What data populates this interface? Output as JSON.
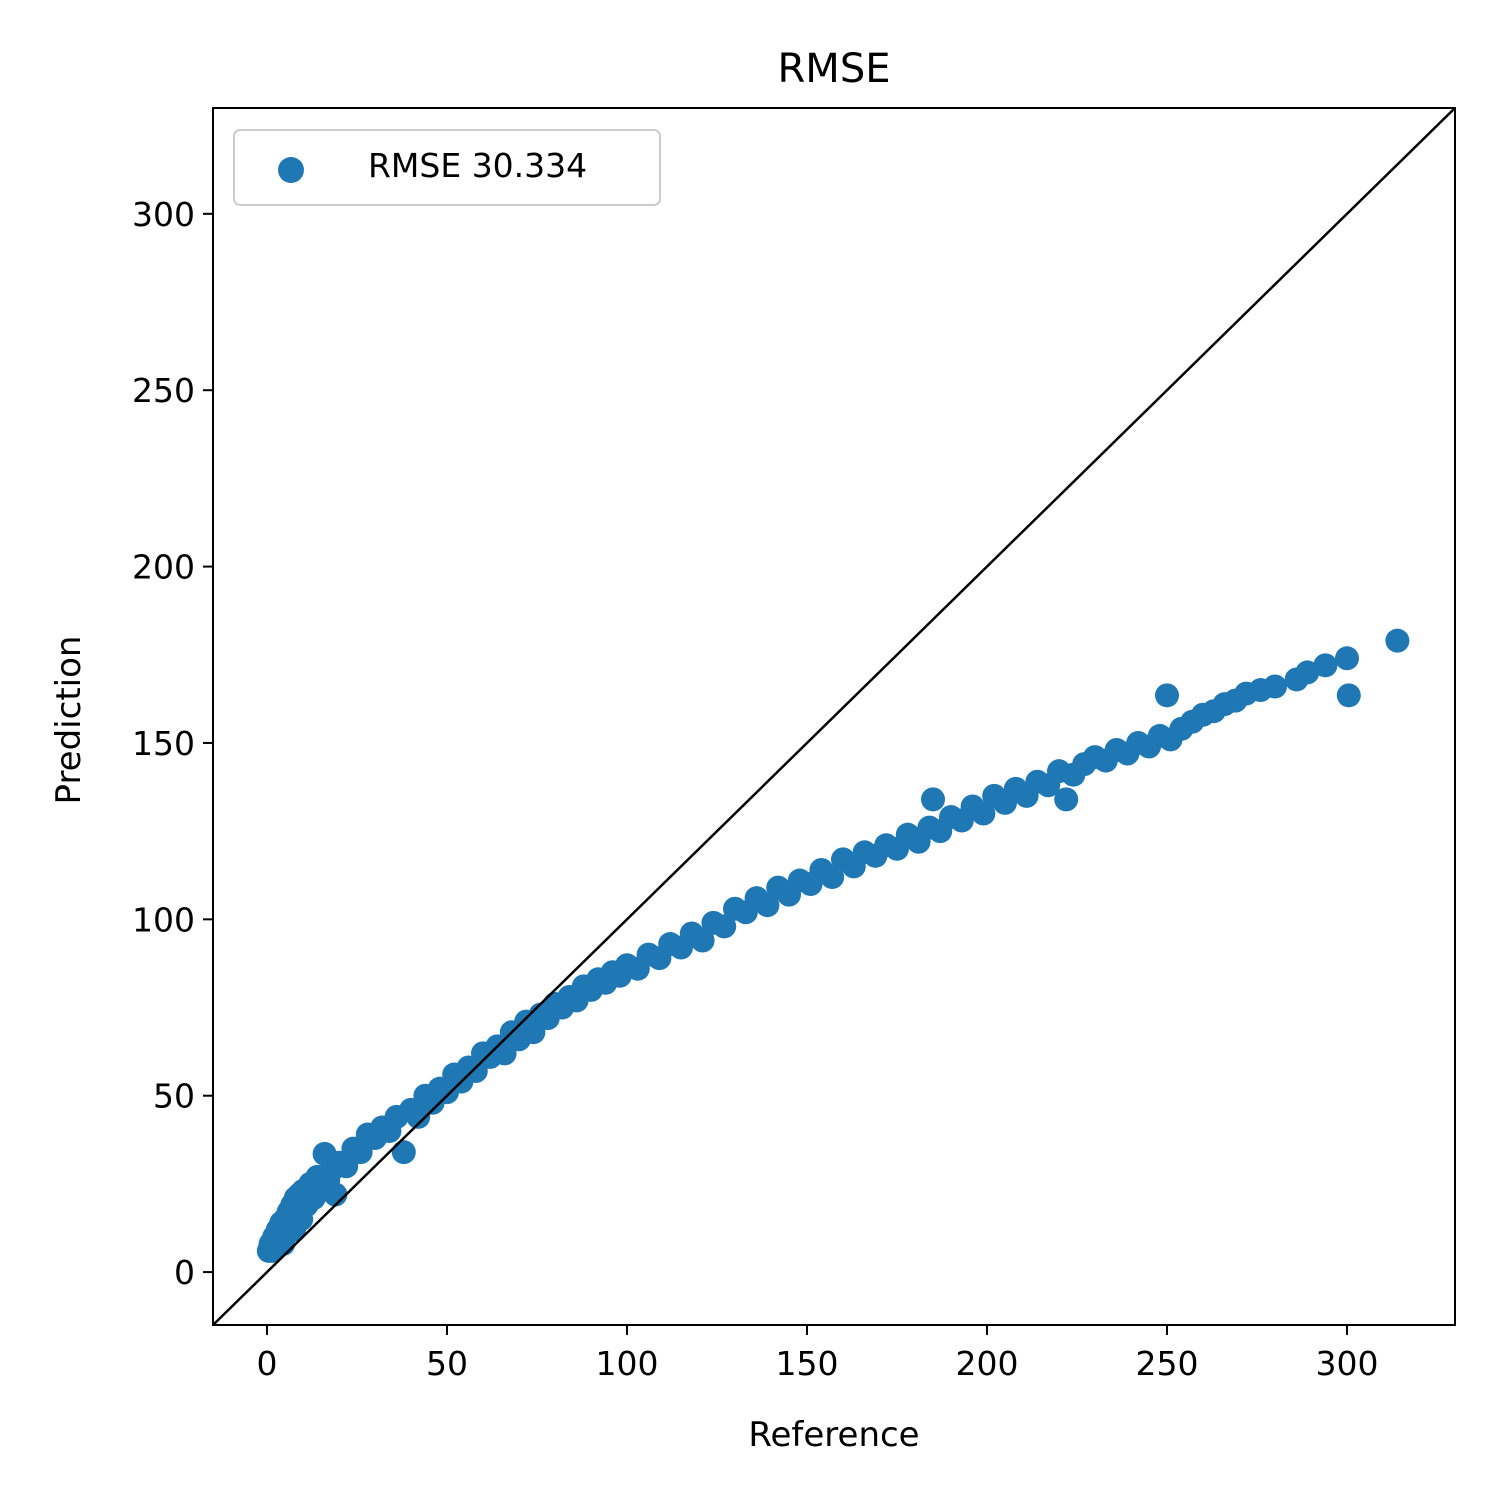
{
  "chart_data": {
    "type": "scatter",
    "title": "RMSE",
    "xlabel": "Reference",
    "ylabel": "Prediction",
    "xlim": [
      -15,
      330
    ],
    "ylim": [
      -15,
      330
    ],
    "xticks": [
      "0",
      "50",
      "100",
      "150",
      "200",
      "250",
      "300"
    ],
    "yticks": [
      "0",
      "50",
      "100",
      "150",
      "200",
      "250",
      "300"
    ],
    "grid": false,
    "legend_placement": "top-left",
    "identity_line": true,
    "series": [
      {
        "name": "RMSE 30.334",
        "color": "#1f77b4",
        "points": [
          [
            0.5,
            6
          ],
          [
            1,
            8
          ],
          [
            1.5,
            6
          ],
          [
            2,
            10
          ],
          [
            2.5,
            7
          ],
          [
            3,
            12
          ],
          [
            3.5,
            9
          ],
          [
            4,
            14
          ],
          [
            4.5,
            8
          ],
          [
            5,
            15
          ],
          [
            5.5,
            11
          ],
          [
            6,
            17
          ],
          [
            6.5,
            13
          ],
          [
            7,
            19
          ],
          [
            7.5,
            12
          ],
          [
            8,
            21
          ],
          [
            8.5,
            16
          ],
          [
            9,
            22
          ],
          [
            9.5,
            15
          ],
          [
            10,
            23
          ],
          [
            11,
            19
          ],
          [
            12,
            25
          ],
          [
            13,
            21
          ],
          [
            14,
            27
          ],
          [
            15,
            24
          ],
          [
            16,
            33.5
          ],
          [
            17,
            26
          ],
          [
            18,
            29
          ],
          [
            19,
            22
          ],
          [
            20,
            31
          ],
          [
            22,
            30
          ],
          [
            24,
            35
          ],
          [
            26,
            34
          ],
          [
            28,
            39
          ],
          [
            30,
            38
          ],
          [
            32,
            41
          ],
          [
            34,
            40
          ],
          [
            36,
            44
          ],
          [
            38,
            34
          ],
          [
            40,
            46
          ],
          [
            42,
            44
          ],
          [
            44,
            50
          ],
          [
            46,
            48
          ],
          [
            48,
            52
          ],
          [
            50,
            51
          ],
          [
            52,
            56
          ],
          [
            54,
            54
          ],
          [
            56,
            58
          ],
          [
            58,
            57
          ],
          [
            60,
            62
          ],
          [
            62,
            61
          ],
          [
            64,
            64
          ],
          [
            66,
            62
          ],
          [
            68,
            68
          ],
          [
            70,
            66
          ],
          [
            72,
            71
          ],
          [
            74,
            68
          ],
          [
            76,
            73
          ],
          [
            78,
            72
          ],
          [
            80,
            76
          ],
          [
            82,
            75
          ],
          [
            84,
            78
          ],
          [
            86,
            77
          ],
          [
            88,
            81
          ],
          [
            90,
            80
          ],
          [
            92,
            83
          ],
          [
            94,
            82
          ],
          [
            96,
            85
          ],
          [
            98,
            84
          ],
          [
            100,
            87
          ],
          [
            103,
            86
          ],
          [
            106,
            90
          ],
          [
            109,
            89
          ],
          [
            112,
            93
          ],
          [
            115,
            92
          ],
          [
            118,
            96
          ],
          [
            121,
            94
          ],
          [
            124,
            99
          ],
          [
            127,
            98
          ],
          [
            130,
            103
          ],
          [
            133,
            102
          ],
          [
            136,
            106
          ],
          [
            139,
            104
          ],
          [
            142,
            109
          ],
          [
            145,
            107
          ],
          [
            148,
            111
          ],
          [
            151,
            110
          ],
          [
            154,
            114
          ],
          [
            157,
            112
          ],
          [
            160,
            117
          ],
          [
            163,
            115
          ],
          [
            166,
            119
          ],
          [
            169,
            118
          ],
          [
            172,
            121
          ],
          [
            175,
            120
          ],
          [
            178,
            124
          ],
          [
            181,
            122
          ],
          [
            184,
            126
          ],
          [
            185,
            134
          ],
          [
            187,
            125
          ],
          [
            190,
            129
          ],
          [
            193,
            128
          ],
          [
            196,
            132
          ],
          [
            199,
            130
          ],
          [
            202,
            135
          ],
          [
            205,
            133
          ],
          [
            208,
            137
          ],
          [
            211,
            135
          ],
          [
            214,
            139
          ],
          [
            217,
            138
          ],
          [
            220,
            142
          ],
          [
            222,
            134
          ],
          [
            224,
            141
          ],
          [
            227,
            144
          ],
          [
            230,
            146
          ],
          [
            233,
            145
          ],
          [
            236,
            148
          ],
          [
            239,
            147
          ],
          [
            242,
            150
          ],
          [
            245,
            149
          ],
          [
            248,
            152
          ],
          [
            250,
            163.5
          ],
          [
            251,
            151
          ],
          [
            254,
            154
          ],
          [
            257,
            156
          ],
          [
            260,
            158
          ],
          [
            263,
            159
          ],
          [
            266,
            161
          ],
          [
            269,
            162
          ],
          [
            272,
            164
          ],
          [
            276,
            165
          ],
          [
            280,
            166
          ],
          [
            286,
            168
          ],
          [
            289,
            170
          ],
          [
            294,
            172
          ],
          [
            300,
            174
          ],
          [
            300.5,
            163.5
          ],
          [
            314,
            179
          ]
        ]
      }
    ]
  }
}
